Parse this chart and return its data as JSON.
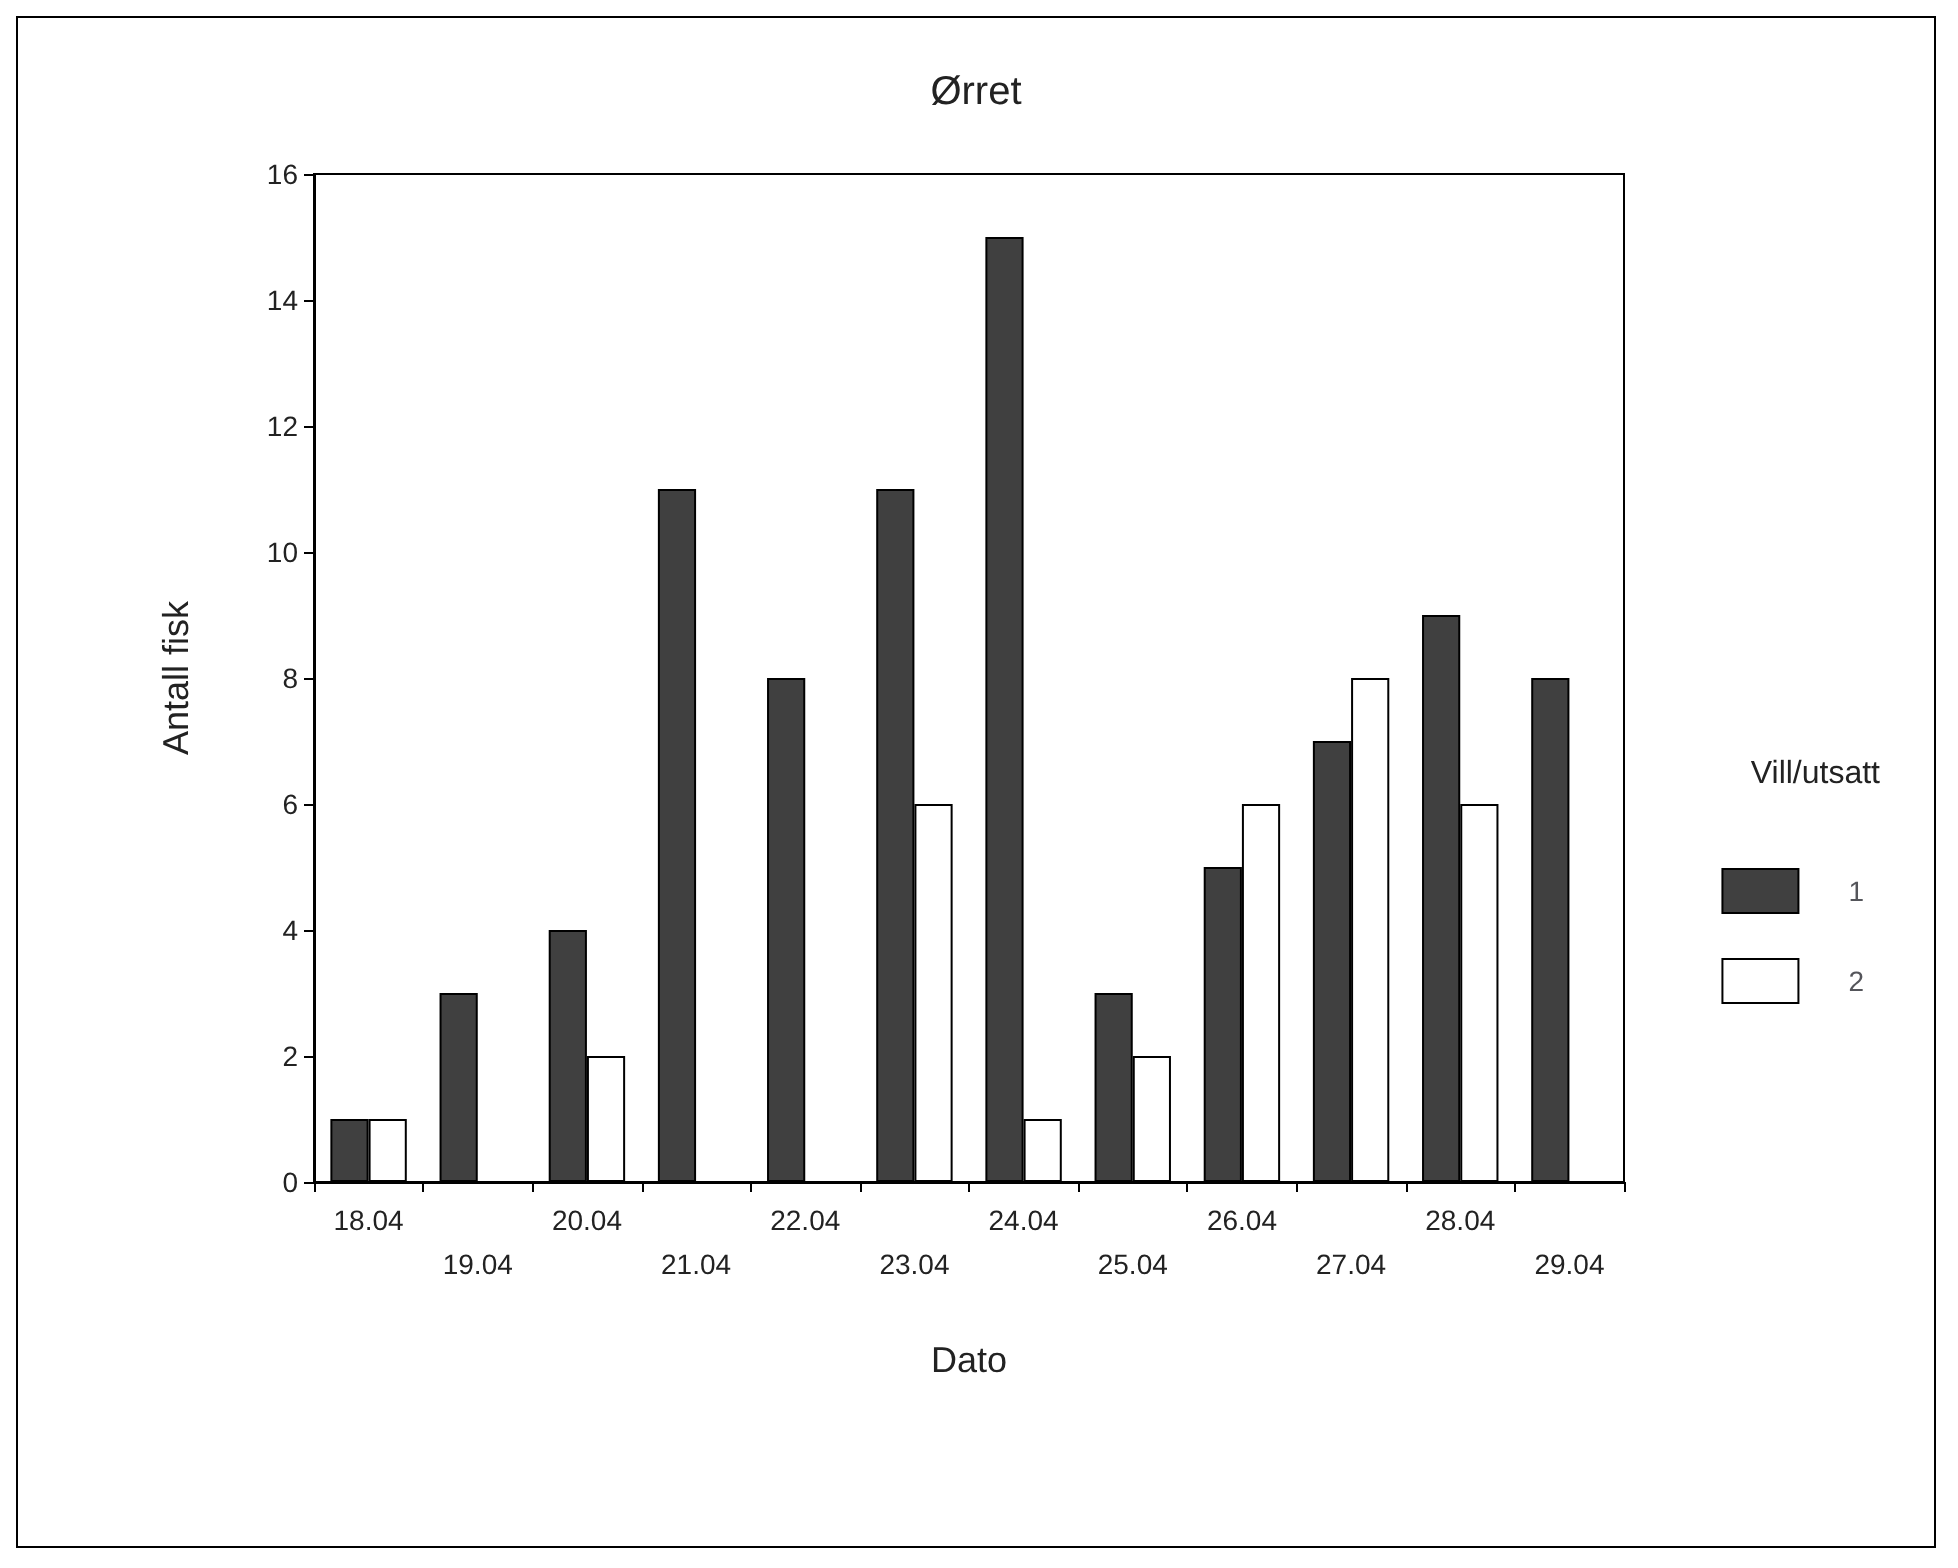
{
  "chart_data": {
    "type": "bar",
    "title": "Ørret",
    "xlabel": "Dato",
    "ylabel": "Antall fisk",
    "legend_title": "Vill/utsatt",
    "categories": [
      "18.04",
      "19.04",
      "20.04",
      "21.04",
      "22.04",
      "23.04",
      "24.04",
      "25.04",
      "26.04",
      "27.04",
      "28.04",
      "29.04"
    ],
    "series": [
      {
        "name": "1",
        "color": "#404040",
        "values": [
          1,
          3,
          4,
          11,
          8,
          11,
          15,
          3,
          5,
          7,
          9,
          8
        ]
      },
      {
        "name": "2",
        "color": "#ffffff",
        "values": [
          1,
          null,
          2,
          null,
          null,
          6,
          1,
          2,
          6,
          8,
          6,
          null
        ]
      }
    ],
    "ylim": [
      0,
      16
    ],
    "yticks": [
      0,
      2,
      4,
      6,
      8,
      10,
      12,
      14,
      16
    ],
    "grid": false,
    "legend": "right"
  }
}
